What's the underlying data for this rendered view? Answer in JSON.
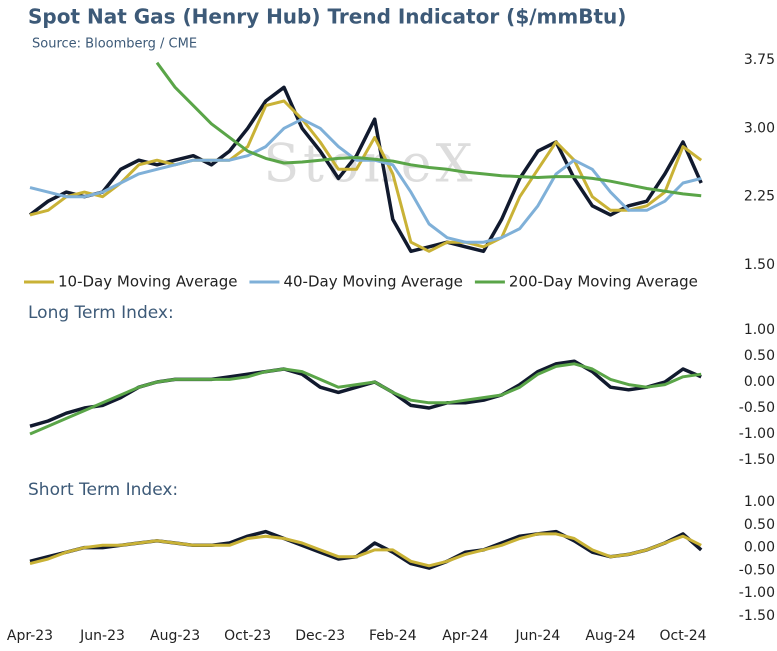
{
  "chart_data": [
    {
      "type": "line",
      "title": "Spot Nat Gas (Henry Hub) Trend Indicator ($/mmBtu)",
      "subtitle": "Source: Bloomberg / CME",
      "watermark": "StoneX",
      "ylim": [
        1.5,
        3.75
      ],
      "yticks": [
        {
          "value": 1.5,
          "label": "1.50"
        },
        2.25,
        {
          "value": 3.0,
          "label": "3.00"
        },
        3.75
      ],
      "legend": "bottom",
      "series": [
        {
          "color": "#111a2e",
          "values": [
            2.05,
            2.2,
            2.3,
            2.25,
            2.3,
            2.55,
            2.65,
            2.6,
            2.65,
            2.7,
            2.6,
            2.75,
            3.0,
            3.3,
            3.45,
            3.0,
            2.75,
            2.45,
            2.7,
            3.1,
            2.0,
            1.65,
            1.7,
            1.75,
            1.7,
            1.65,
            2.0,
            2.45,
            2.75,
            2.85,
            2.45,
            2.15,
            2.05,
            2.15,
            2.2,
            2.5,
            2.85,
            2.4
          ]
        },
        {
          "name": "10-Day Moving Average",
          "color": "#c9b236",
          "values": [
            2.05,
            2.1,
            2.25,
            2.3,
            2.25,
            2.4,
            2.6,
            2.65,
            2.6,
            2.65,
            2.65,
            2.65,
            2.8,
            3.25,
            3.3,
            3.1,
            2.85,
            2.55,
            2.55,
            2.9,
            2.5,
            1.75,
            1.65,
            1.75,
            1.75,
            1.7,
            1.8,
            2.25,
            2.55,
            2.85,
            2.65,
            2.25,
            2.1,
            2.1,
            2.15,
            2.3,
            2.8,
            2.65
          ]
        },
        {
          "name": "40-Day Moving Average",
          "color": "#7fb0d8",
          "values": [
            2.35,
            2.3,
            2.25,
            2.25,
            2.3,
            2.4,
            2.5,
            2.55,
            2.6,
            2.65,
            2.65,
            2.65,
            2.7,
            2.8,
            3.0,
            3.1,
            3.0,
            2.8,
            2.65,
            2.65,
            2.6,
            2.3,
            1.95,
            1.8,
            1.75,
            1.75,
            1.8,
            1.9,
            2.15,
            2.5,
            2.65,
            2.55,
            2.3,
            2.1,
            2.1,
            2.2,
            2.4,
            2.45
          ]
        },
        {
          "name": "200-Day Moving Average",
          "color": "#5aa548",
          "values": [
            null,
            null,
            null,
            null,
            null,
            null,
            null,
            3.72,
            3.45,
            3.25,
            3.05,
            2.9,
            2.75,
            2.67,
            2.62,
            2.63,
            2.65,
            2.67,
            2.68,
            2.66,
            2.64,
            2.6,
            2.57,
            2.55,
            2.52,
            2.5,
            2.48,
            2.47,
            2.46,
            2.47,
            2.47,
            2.45,
            2.42,
            2.38,
            2.34,
            2.31,
            2.28,
            2.26
          ]
        }
      ]
    },
    {
      "type": "line",
      "title": "Long Term Index:",
      "ylim": [
        -1.5,
        1.0
      ],
      "yticks": [
        {
          "value": -1.5,
          "label": "-1.50"
        },
        {
          "value": -1.0,
          "label": "-1.00"
        },
        {
          "value": -0.5,
          "label": "-0.50"
        },
        {
          "value": 0,
          "label": "0.00"
        },
        {
          "value": 0.5,
          "label": "0.50"
        },
        {
          "value": 1.0,
          "label": "1.00"
        }
      ],
      "series": [
        {
          "color": "#111a2e",
          "values": [
            -0.85,
            -0.75,
            -0.6,
            -0.5,
            -0.45,
            -0.3,
            -0.1,
            0.0,
            0.05,
            0.05,
            0.05,
            0.1,
            0.15,
            0.2,
            0.25,
            0.15,
            -0.1,
            -0.2,
            -0.1,
            0.0,
            -0.2,
            -0.45,
            -0.5,
            -0.4,
            -0.4,
            -0.35,
            -0.25,
            -0.05,
            0.2,
            0.35,
            0.4,
            0.2,
            -0.1,
            -0.15,
            -0.1,
            0.0,
            0.25,
            0.1
          ]
        },
        {
          "color": "#5aa548",
          "values": [
            -1.0,
            -0.85,
            -0.7,
            -0.55,
            -0.4,
            -0.25,
            -0.1,
            0.0,
            0.05,
            0.05,
            0.05,
            0.05,
            0.1,
            0.2,
            0.25,
            0.2,
            0.05,
            -0.1,
            -0.05,
            0.0,
            -0.2,
            -0.35,
            -0.4,
            -0.4,
            -0.35,
            -0.3,
            -0.25,
            -0.1,
            0.15,
            0.3,
            0.35,
            0.25,
            0.05,
            -0.05,
            -0.1,
            -0.05,
            0.1,
            0.15
          ]
        }
      ]
    },
    {
      "type": "line",
      "title": "Short Term Index:",
      "ylim": [
        -1.5,
        1.0
      ],
      "yticks": [
        {
          "value": -1.5,
          "label": "-1.50"
        },
        {
          "value": -1.0,
          "label": "-1.00"
        },
        {
          "value": -0.5,
          "label": "-0.50"
        },
        {
          "value": 0,
          "label": "0.00"
        },
        {
          "value": 0.5,
          "label": "0.50"
        },
        {
          "value": 1.0,
          "label": "1.00"
        }
      ],
      "categories": [
        "Apr-23",
        null,
        null,
        null,
        "Jun-23",
        null,
        null,
        null,
        "Aug-23",
        null,
        null,
        null,
        "Oct-23",
        null,
        null,
        null,
        "Dec-23",
        null,
        null,
        null,
        "Feb-24",
        null,
        null,
        null,
        "Apr-24",
        null,
        null,
        null,
        "Jun-24",
        null,
        null,
        null,
        "Aug-24",
        null,
        null,
        null,
        "Oct-24",
        null
      ],
      "series": [
        {
          "color": "#111a2e",
          "values": [
            -0.3,
            -0.2,
            -0.1,
            0.0,
            0.0,
            0.05,
            0.1,
            0.15,
            0.1,
            0.05,
            0.05,
            0.1,
            0.25,
            0.35,
            0.2,
            0.05,
            -0.1,
            -0.25,
            -0.2,
            0.1,
            -0.1,
            -0.35,
            -0.45,
            -0.3,
            -0.1,
            -0.05,
            0.1,
            0.25,
            0.3,
            0.35,
            0.15,
            -0.1,
            -0.2,
            -0.15,
            -0.05,
            0.1,
            0.3,
            -0.05
          ]
        },
        {
          "color": "#c9b236",
          "values": [
            -0.35,
            -0.25,
            -0.1,
            0.0,
            0.05,
            0.05,
            0.1,
            0.15,
            0.1,
            0.05,
            0.05,
            0.05,
            0.2,
            0.25,
            0.2,
            0.1,
            -0.05,
            -0.2,
            -0.2,
            -0.05,
            -0.05,
            -0.3,
            -0.4,
            -0.3,
            -0.15,
            -0.05,
            0.05,
            0.2,
            0.3,
            0.3,
            0.2,
            -0.05,
            -0.2,
            -0.15,
            -0.05,
            0.1,
            0.25,
            0.05
          ]
        }
      ]
    }
  ]
}
